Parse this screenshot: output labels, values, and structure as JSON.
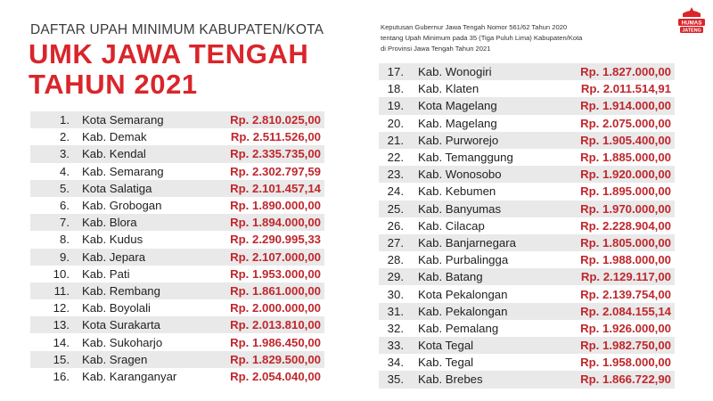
{
  "header": {
    "subtitle": "DAFTAR UPAH MINIMUM KABUPATEN/KOTA",
    "title_line1": "UMK JAWA TENGAH",
    "title_line2": "TAHUN 2021"
  },
  "decree": {
    "line1": "Keputusan Gubernur Jawa Tengah Nomor 561/62 Tahun 2020",
    "line2": "tentang Upah Minimum pada 35 (Tiga Puluh Lima) Kabupaten/Kota",
    "line3": "di Provinsi Jawa Tengah Tahun 2021"
  },
  "logo": {
    "line1": "HUMAS",
    "line2": "JATENG",
    "color": "#d9252b"
  },
  "colors": {
    "accent": "#d9252b",
    "value": "#c0272d",
    "row_alt": "#e9e9e9"
  },
  "left_list": [
    {
      "num": "1.",
      "name": "Kota Semarang",
      "value": "Rp. 2.810.025,00"
    },
    {
      "num": "2.",
      "name": "Kab. Demak",
      "value": "Rp. 2.511.526,00"
    },
    {
      "num": "3.",
      "name": "Kab. Kendal",
      "value": "Rp. 2.335.735,00"
    },
    {
      "num": "4.",
      "name": "Kab. Semarang",
      "value": "Rp. 2.302.797,59"
    },
    {
      "num": "5.",
      "name": "Kota Salatiga",
      "value": "Rp. 2.101.457,14"
    },
    {
      "num": "6.",
      "name": "Kab. Grobogan",
      "value": "Rp. 1.890.000,00"
    },
    {
      "num": "7.",
      "name": "Kab. Blora",
      "value": "Rp. 1.894.000,00"
    },
    {
      "num": "8.",
      "name": "Kab. Kudus",
      "value": "Rp. 2.290.995,33"
    },
    {
      "num": "9.",
      "name": "Kab. Jepara",
      "value": "Rp. 2.107.000,00"
    },
    {
      "num": "10.",
      "name": "Kab. Pati",
      "value": "Rp. 1.953.000,00"
    },
    {
      "num": "11.",
      "name": "Kab. Rembang",
      "value": "Rp. 1.861.000,00"
    },
    {
      "num": "12.",
      "name": "Kab. Boyolali",
      "value": "Rp. 2.000.000,00"
    },
    {
      "num": "13.",
      "name": "Kota Surakarta",
      "value": "Rp. 2.013.810,00"
    },
    {
      "num": "14.",
      "name": "Kab. Sukoharjo",
      "value": "Rp. 1.986.450,00"
    },
    {
      "num": "15.",
      "name": "Kab. Sragen",
      "value": "Rp. 1.829.500,00"
    },
    {
      "num": "16.",
      "name": "Kab. Karanganyar",
      "value": "Rp. 2.054.040,00"
    }
  ],
  "right_list": [
    {
      "num": "17.",
      "name": "Kab. Wonogiri",
      "value": "Rp. 1.827.000,00"
    },
    {
      "num": "18.",
      "name": "Kab. Klaten",
      "value": "Rp. 2.011.514,91"
    },
    {
      "num": "19.",
      "name": "Kota Magelang",
      "value": "Rp. 1.914.000,00"
    },
    {
      "num": "20.",
      "name": "Kab. Magelang",
      "value": "Rp. 2.075.000,00"
    },
    {
      "num": "21.",
      "name": "Kab. Purworejo",
      "value": "Rp. 1.905.400,00"
    },
    {
      "num": "22.",
      "name": "Kab. Temanggung",
      "value": "Rp. 1.885.000,00"
    },
    {
      "num": "23.",
      "name": "Kab. Wonosobo",
      "value": "Rp. 1.920.000,00"
    },
    {
      "num": "24.",
      "name": "Kab. Kebumen",
      "value": "Rp. 1.895.000,00"
    },
    {
      "num": "25.",
      "name": "Kab. Banyumas",
      "value": "Rp. 1.970.000,00"
    },
    {
      "num": "26.",
      "name": "Kab. Cilacap",
      "value": "Rp. 2.228.904,00"
    },
    {
      "num": "27.",
      "name": "Kab. Banjarnegara",
      "value": "Rp. 1.805.000,00"
    },
    {
      "num": "28.",
      "name": "Kab. Purbalingga",
      "value": "Rp. 1.988.000,00"
    },
    {
      "num": "29.",
      "name": "Kab. Batang",
      "value": "Rp. 2.129.117,00"
    },
    {
      "num": "30.",
      "name": "Kota Pekalongan",
      "value": "Rp. 2.139.754,00"
    },
    {
      "num": "31.",
      "name": "Kab. Pekalongan",
      "value": "Rp. 2.084.155,14"
    },
    {
      "num": "32.",
      "name": "Kab. Pemalang",
      "value": "Rp. 1.926.000,00"
    },
    {
      "num": "33.",
      "name": "Kota Tegal",
      "value": "Rp. 1.982.750,00"
    },
    {
      "num": "34.",
      "name": "Kab. Tegal",
      "value": "Rp. 1.958.000,00"
    },
    {
      "num": "35.",
      "name": "Kab. Brebes",
      "value": "Rp. 1.866.722,90"
    }
  ]
}
